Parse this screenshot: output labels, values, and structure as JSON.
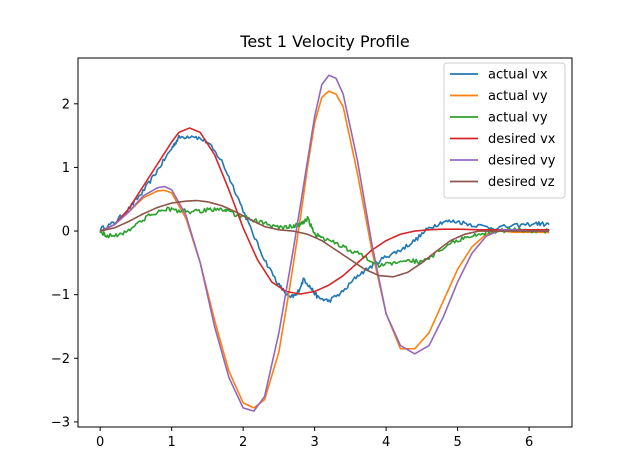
{
  "chart_data": {
    "type": "line",
    "title": "Test 1 Velocity Profile",
    "xlabel": "",
    "ylabel": "",
    "xlim": [
      -0.31,
      6.6
    ],
    "ylim": [
      -3.08,
      2.72
    ],
    "xticks": [
      0,
      1,
      2,
      3,
      4,
      5,
      6
    ],
    "yticks": [
      -3,
      -2,
      -1,
      0,
      1,
      2
    ],
    "tick_labels_y": [
      "−3",
      "−2",
      "−1",
      "0",
      "1",
      "2"
    ],
    "tick_labels_x": [
      "0",
      "1",
      "2",
      "3",
      "4",
      "5",
      "6"
    ],
    "grid": false,
    "legend_position": "top-right",
    "series": [
      {
        "name": "actual vx",
        "color": "#1f77b4",
        "noisy": true,
        "x": [
          0,
          0.2,
          0.4,
          0.6,
          0.8,
          1.0,
          1.1,
          1.3,
          1.5,
          1.7,
          1.9,
          2.1,
          2.3,
          2.5,
          2.65,
          2.75,
          2.85,
          2.95,
          3.05,
          3.2,
          3.4,
          3.6,
          3.8,
          4.0,
          4.2,
          4.4,
          4.6,
          4.8,
          5.0,
          5.2,
          5.5,
          5.8,
          6.1,
          6.28
        ],
        "y": [
          0.03,
          0.13,
          0.35,
          0.62,
          0.95,
          1.3,
          1.47,
          1.5,
          1.4,
          1.1,
          0.6,
          0.05,
          -0.45,
          -0.85,
          -1.05,
          -1.0,
          -0.75,
          -0.9,
          -1.05,
          -1.1,
          -0.95,
          -0.7,
          -0.55,
          -0.4,
          -0.3,
          -0.15,
          0.05,
          0.15,
          0.15,
          0.1,
          0.05,
          0.08,
          0.12,
          0.1
        ]
      },
      {
        "name": "actual vy",
        "color": "#ff7f0e",
        "noisy": false,
        "x": [
          0,
          0.2,
          0.4,
          0.6,
          0.8,
          0.9,
          1.0,
          1.2,
          1.4,
          1.6,
          1.8,
          2.0,
          2.15,
          2.3,
          2.5,
          2.65,
          2.8,
          2.9,
          3.0,
          3.1,
          3.2,
          3.3,
          3.4,
          3.6,
          3.8,
          4.0,
          4.2,
          4.4,
          4.6,
          4.8,
          5.0,
          5.2,
          5.4,
          5.6,
          5.8,
          6.0,
          6.28
        ],
        "y": [
          0.0,
          0.1,
          0.3,
          0.52,
          0.63,
          0.64,
          0.6,
          0.2,
          -0.5,
          -1.4,
          -2.2,
          -2.7,
          -2.78,
          -2.65,
          -1.9,
          -0.9,
          0.2,
          1.0,
          1.7,
          2.1,
          2.2,
          2.15,
          1.95,
          0.9,
          -0.3,
          -1.3,
          -1.85,
          -1.85,
          -1.6,
          -1.1,
          -0.6,
          -0.25,
          -0.05,
          0.0,
          -0.02,
          -0.02,
          -0.02
        ]
      },
      {
        "name": "actual vy",
        "color": "#2ca02c",
        "noisy": true,
        "x": [
          0,
          0.1,
          0.3,
          0.5,
          0.7,
          0.9,
          1.1,
          1.3,
          1.5,
          1.7,
          1.8,
          2.0,
          2.2,
          2.4,
          2.6,
          2.7,
          2.8,
          2.9,
          3.0,
          3.1,
          3.3,
          3.5,
          3.7,
          3.9,
          4.1,
          4.3,
          4.5,
          4.7,
          4.9,
          5.1,
          5.3,
          5.5,
          5.8,
          6.1,
          6.28
        ],
        "y": [
          0.0,
          -0.08,
          -0.05,
          0.1,
          0.25,
          0.35,
          0.32,
          0.3,
          0.33,
          0.35,
          0.3,
          0.22,
          0.15,
          0.08,
          0.05,
          0.08,
          0.1,
          0.2,
          -0.05,
          -0.1,
          -0.2,
          -0.3,
          -0.4,
          -0.55,
          -0.5,
          -0.45,
          -0.5,
          -0.35,
          -0.2,
          -0.1,
          -0.05,
          0.0,
          0.02,
          0.0,
          0.0
        ]
      },
      {
        "name": "desired vx",
        "color": "#d62728",
        "noisy": false,
        "x": [
          0,
          0.2,
          0.4,
          0.6,
          0.8,
          1.0,
          1.1,
          1.25,
          1.4,
          1.6,
          1.8,
          2.0,
          2.2,
          2.4,
          2.6,
          2.8,
          3.0,
          3.2,
          3.4,
          3.6,
          3.8,
          4.0,
          4.2,
          4.4,
          4.6,
          4.8,
          5.0,
          5.3,
          5.6,
          6.0,
          6.28
        ],
        "y": [
          0.0,
          0.1,
          0.35,
          0.7,
          1.05,
          1.4,
          1.55,
          1.62,
          1.55,
          1.2,
          0.65,
          0.05,
          -0.45,
          -0.8,
          -0.95,
          -0.99,
          -0.95,
          -0.85,
          -0.7,
          -0.5,
          -0.3,
          -0.15,
          -0.05,
          0.0,
          0.02,
          0.03,
          0.03,
          0.02,
          0.02,
          0.02,
          0.02
        ]
      },
      {
        "name": "desired vy",
        "color": "#9467bd",
        "noisy": false,
        "x": [
          0,
          0.2,
          0.4,
          0.6,
          0.8,
          0.9,
          1.0,
          1.2,
          1.4,
          1.6,
          1.8,
          2.0,
          2.15,
          2.3,
          2.5,
          2.7,
          2.9,
          3.0,
          3.1,
          3.2,
          3.3,
          3.4,
          3.6,
          3.8,
          4.0,
          4.2,
          4.4,
          4.6,
          4.8,
          5.0,
          5.2,
          5.4,
          5.6,
          5.8,
          6.0,
          6.28
        ],
        "y": [
          0.0,
          0.1,
          0.3,
          0.55,
          0.68,
          0.7,
          0.65,
          0.25,
          -0.5,
          -1.5,
          -2.3,
          -2.78,
          -2.83,
          -2.6,
          -1.6,
          -0.3,
          1.1,
          1.8,
          2.3,
          2.45,
          2.4,
          2.15,
          1.1,
          -0.2,
          -1.3,
          -1.8,
          -1.93,
          -1.8,
          -1.35,
          -0.8,
          -0.35,
          -0.08,
          0.02,
          0.02,
          0.0,
          0.0
        ]
      },
      {
        "name": "desired vz",
        "color": "#8c564b",
        "noisy": false,
        "x": [
          0,
          0.2,
          0.4,
          0.6,
          0.8,
          1.0,
          1.2,
          1.35,
          1.5,
          1.7,
          1.9,
          2.1,
          2.3,
          2.5,
          2.7,
          2.9,
          3.1,
          3.3,
          3.5,
          3.7,
          3.9,
          4.1,
          4.3,
          4.5,
          4.7,
          4.9,
          5.1,
          5.3,
          5.5,
          5.8,
          6.1,
          6.28
        ],
        "y": [
          0.0,
          0.05,
          0.15,
          0.27,
          0.37,
          0.44,
          0.47,
          0.48,
          0.46,
          0.4,
          0.3,
          0.18,
          0.07,
          0.02,
          0.0,
          -0.05,
          -0.15,
          -0.3,
          -0.45,
          -0.6,
          -0.7,
          -0.72,
          -0.65,
          -0.5,
          -0.32,
          -0.15,
          -0.05,
          0.0,
          0.0,
          0.0,
          0.0,
          0.0
        ]
      }
    ]
  }
}
